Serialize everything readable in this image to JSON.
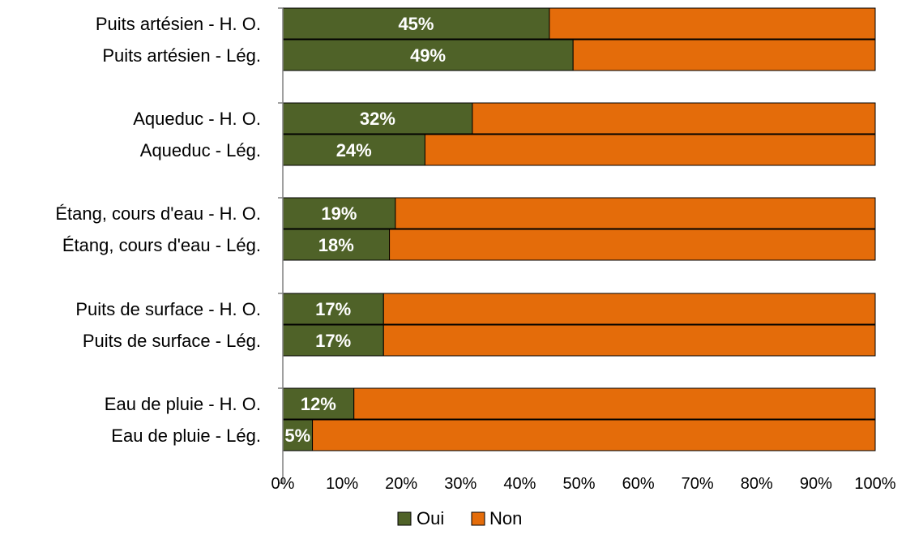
{
  "chart_data": {
    "type": "bar",
    "orientation": "horizontal",
    "stacked": "percent",
    "categories": [
      "Puits artésien - H. O.",
      "Puits artésien - Lég.",
      "Aqueduc - H. O.",
      "Aqueduc - Lég.",
      "Étang, cours d'eau - H. O.",
      "Étang, cours d'eau - Lég.",
      "Puits de surface - H. O.",
      "Puits de surface - Lég.",
      "Eau de pluie - H. O.",
      "Eau de pluie - Lég."
    ],
    "groups": [
      [
        0,
        1
      ],
      [
        2,
        3
      ],
      [
        4,
        5
      ],
      [
        6,
        7
      ],
      [
        8,
        9
      ]
    ],
    "series": [
      {
        "name": "Oui",
        "values": [
          45,
          49,
          32,
          24,
          19,
          18,
          17,
          17,
          12,
          5
        ],
        "data_labels": [
          "45%",
          "49%",
          "32%",
          "24%",
          "19%",
          "18%",
          "17%",
          "17%",
          "12%",
          "5%"
        ],
        "color": "#4f6228"
      },
      {
        "name": "Non",
        "values": [
          55,
          51,
          68,
          76,
          81,
          82,
          83,
          83,
          88,
          95
        ],
        "color": "#e46c0a"
      }
    ],
    "xlim": [
      0,
      100
    ],
    "x_ticks": [
      "0%",
      "10%",
      "20%",
      "30%",
      "40%",
      "50%",
      "60%",
      "70%",
      "80%",
      "90%",
      "100%"
    ],
    "legend_position": "bottom",
    "grid": false,
    "title": "",
    "xlabel": "",
    "ylabel": ""
  }
}
